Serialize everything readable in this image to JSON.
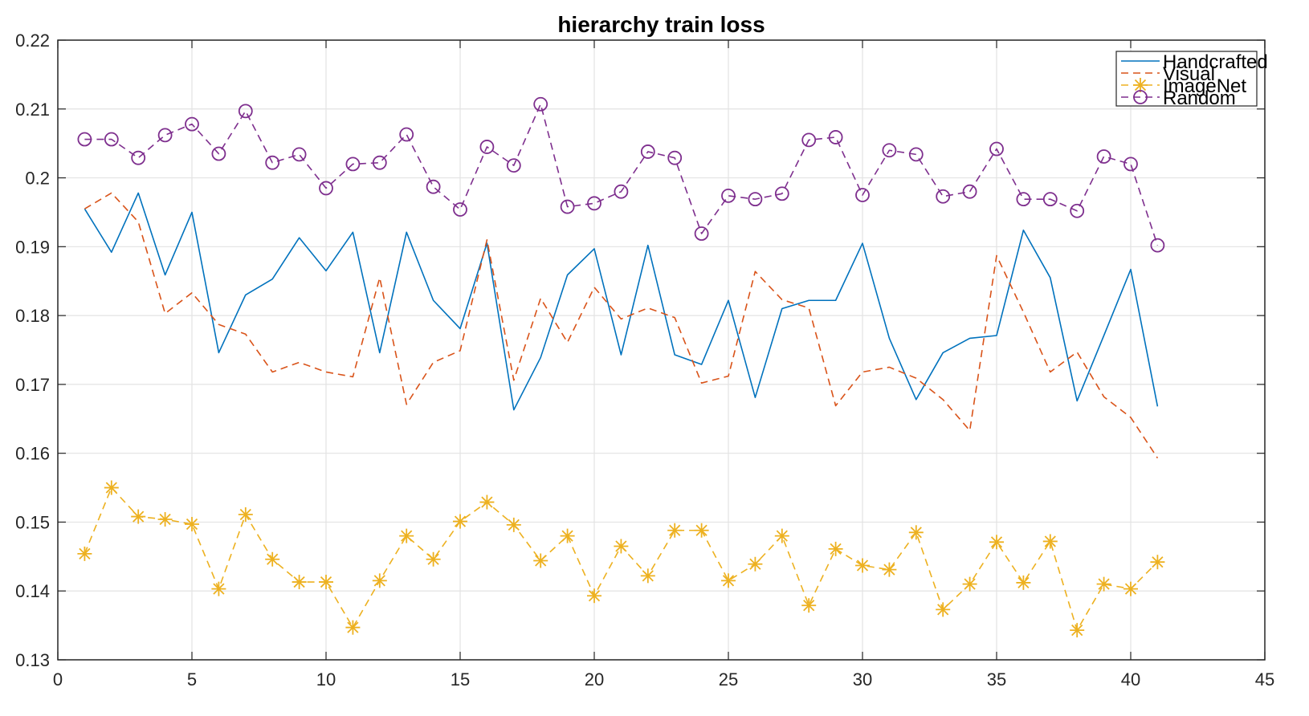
{
  "chart_data": {
    "type": "line",
    "title": "hierarchy train loss",
    "xlabel": "",
    "ylabel": "",
    "xlim": [
      0,
      45
    ],
    "ylim": [
      0.13,
      0.22
    ],
    "xticks": [
      0,
      5,
      10,
      15,
      20,
      25,
      30,
      35,
      40,
      45
    ],
    "yticks": [
      0.13,
      0.14,
      0.15,
      0.16,
      0.17,
      0.18,
      0.19,
      0.2,
      0.21,
      0.22
    ],
    "xtick_labels": [
      "0",
      "5",
      "10",
      "15",
      "20",
      "25",
      "30",
      "35",
      "40",
      "45"
    ],
    "ytick_labels": [
      "0.13",
      "0.14",
      "0.15",
      "0.16",
      "0.17",
      "0.18",
      "0.19",
      "0.2",
      "0.21",
      "0.22"
    ],
    "grid": true,
    "legend_position": "top-right",
    "x": [
      1,
      2,
      3,
      4,
      5,
      6,
      7,
      8,
      9,
      10,
      11,
      12,
      13,
      14,
      15,
      16,
      17,
      18,
      19,
      20,
      21,
      22,
      23,
      24,
      25,
      26,
      27,
      28,
      29,
      30,
      31,
      32,
      33,
      34,
      35,
      36,
      37,
      38,
      39,
      40,
      41
    ],
    "series": [
      {
        "name": "Handcrafted",
        "color": "#0072BD",
        "line_style": "solid",
        "marker": "none",
        "values": [
          0.1955,
          0.1892,
          0.1978,
          0.1859,
          0.195,
          0.1746,
          0.183,
          0.1853,
          0.1913,
          0.1865,
          0.1921,
          0.1746,
          0.1921,
          0.1822,
          0.1781,
          0.1905,
          0.1663,
          0.1739,
          0.1859,
          0.1897,
          0.1743,
          0.1902,
          0.1743,
          0.1729,
          0.1822,
          0.1681,
          0.181,
          0.1822,
          0.1822,
          0.1905,
          0.1767,
          0.1678,
          0.1746,
          0.1767,
          0.1771,
          0.1924,
          0.1855,
          0.1676,
          0.1771,
          0.1867,
          0.1668
        ]
      },
      {
        "name": "Visual",
        "color": "#D95319",
        "line_style": "dashed",
        "marker": "none",
        "values": [
          0.1955,
          0.1978,
          0.1936,
          0.1803,
          0.1833,
          0.1787,
          0.1773,
          0.1718,
          0.1732,
          0.1718,
          0.1711,
          0.1855,
          0.1671,
          0.1732,
          0.1749,
          0.191,
          0.1706,
          0.1825,
          0.1761,
          0.1841,
          0.1795,
          0.1811,
          0.1797,
          0.1702,
          0.1712,
          0.1864,
          0.1823,
          0.1811,
          0.1669,
          0.1718,
          0.1725,
          0.1709,
          0.1678,
          0.1633,
          0.1887,
          0.1805,
          0.1718,
          0.1747,
          0.1682,
          0.1652,
          0.1593
        ]
      },
      {
        "name": "ImageNet",
        "color": "#EDB120",
        "line_style": "dashed",
        "marker": "asterisk",
        "values": [
          0.1454,
          0.155,
          0.1508,
          0.1504,
          0.1497,
          0.1403,
          0.1511,
          0.1446,
          0.1413,
          0.1413,
          0.1347,
          0.1415,
          0.148,
          0.1446,
          0.1501,
          0.1529,
          0.1496,
          0.1444,
          0.148,
          0.1393,
          0.1465,
          0.1422,
          0.1488,
          0.1488,
          0.1415,
          0.1439,
          0.148,
          0.1379,
          0.1461,
          0.1437,
          0.1431,
          0.1485,
          0.1373,
          0.141,
          0.1471,
          0.1412,
          0.1472,
          0.1343,
          0.141,
          0.1403,
          0.1442
        ]
      },
      {
        "name": "Random",
        "color": "#7E2F8E",
        "line_style": "dashed",
        "marker": "circle",
        "values": [
          0.2056,
          0.2056,
          0.2029,
          0.2062,
          0.2078,
          0.2035,
          0.2097,
          0.2022,
          0.2034,
          0.1985,
          0.202,
          0.2022,
          0.2063,
          0.1987,
          0.1954,
          0.2045,
          0.2018,
          0.2107,
          0.1958,
          0.1963,
          0.198,
          0.2038,
          0.2029,
          0.1919,
          0.1974,
          0.1969,
          0.1977,
          0.2055,
          0.2059,
          0.1975,
          0.204,
          0.2034,
          0.1973,
          0.198,
          0.2042,
          0.1969,
          0.1969,
          0.1952,
          0.2031,
          0.202,
          0.1902
        ]
      }
    ]
  }
}
